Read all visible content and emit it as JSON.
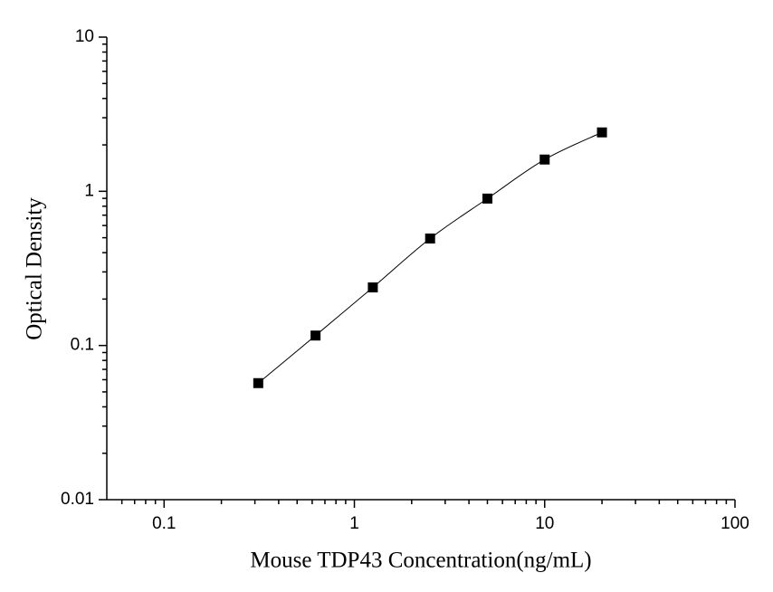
{
  "chart_data": {
    "type": "scatter",
    "x_label": "Mouse TDP43 Concentration(ng/mL)",
    "y_label": "Optical Density",
    "x": [
      0.3125,
      0.625,
      1.25,
      2.5,
      5,
      10,
      20
    ],
    "values": [
      0.057,
      0.116,
      0.238,
      0.494,
      0.897,
      1.607,
      2.41
    ],
    "color": "#000000",
    "xlim": [
      0.05,
      100
    ],
    "ylim": [
      0.01,
      10
    ],
    "xticks": [
      0.1,
      1,
      10,
      100
    ],
    "yticks": [
      0.01,
      0.1,
      1,
      10
    ],
    "xscale": "log",
    "yscale": "log",
    "fit_curve": true
  }
}
